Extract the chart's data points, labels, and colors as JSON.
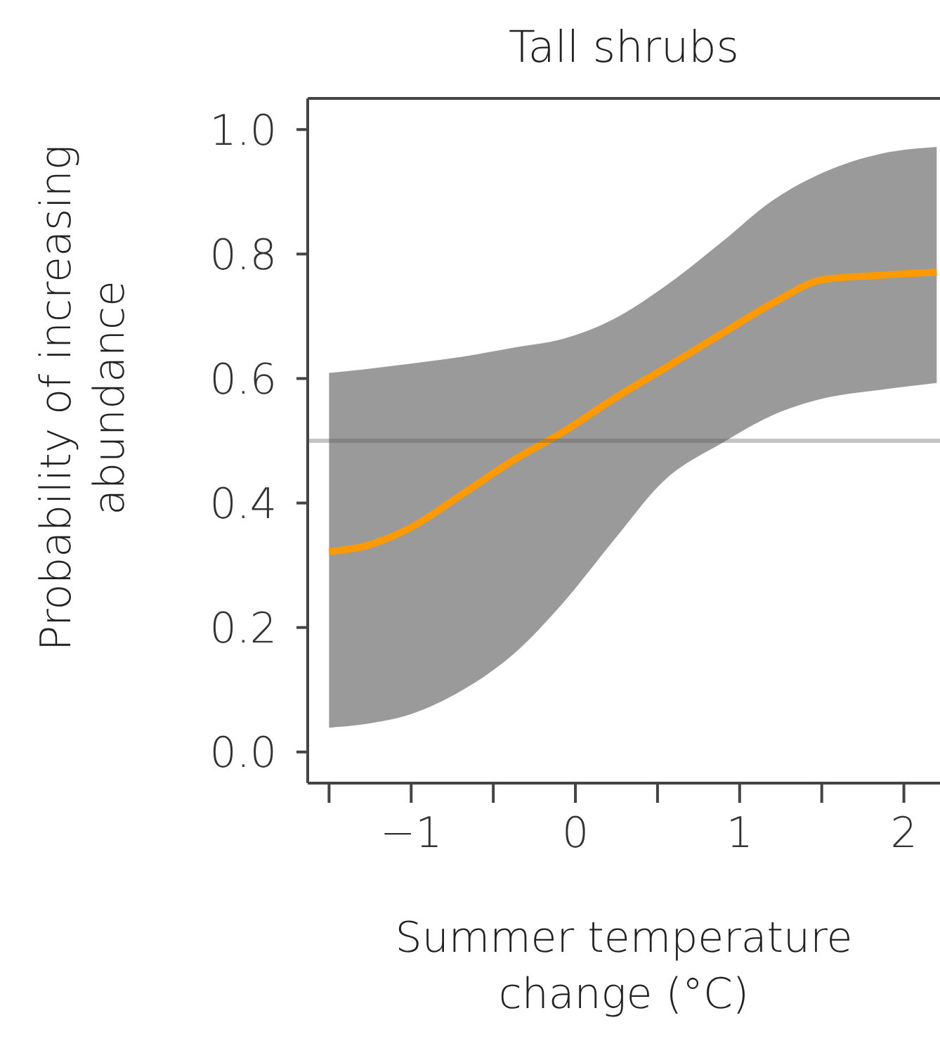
{
  "chart_data": {
    "type": "line",
    "title": "Tall shrubs",
    "xlabel": "Summer temperature change (°C)",
    "ylabel": "Probability of increasing abundance",
    "x": [
      -1.5,
      -1.28,
      -1.0,
      -0.69,
      -0.37,
      -0.07,
      0.23,
      0.54,
      0.89,
      1.2,
      1.51,
      1.86,
      2.2
    ],
    "series": [
      {
        "color": "#ff9900",
        "values": [
          0.322,
          0.331,
          0.361,
          0.414,
          0.47,
          0.515,
          0.567,
          0.616,
          0.672,
          0.721,
          0.759,
          0.766,
          0.771
        ],
        "lower": [
          0.039,
          0.045,
          0.061,
          0.099,
          0.159,
          0.241,
          0.339,
          0.436,
          0.496,
          0.541,
          0.568,
          0.582,
          0.593
        ],
        "upper": [
          0.609,
          0.615,
          0.624,
          0.635,
          0.65,
          0.664,
          0.695,
          0.747,
          0.819,
          0.886,
          0.931,
          0.961,
          0.972
        ]
      }
    ],
    "ref_lines": [
      {
        "axis": "y",
        "value": 0.5,
        "color": "#555555"
      }
    ],
    "xlim": [
      -1.63,
      2.22
    ],
    "xticks": [
      {
        "value": -1.5,
        "label": null
      },
      {
        "value": -1,
        "label": "−1"
      },
      {
        "value": -0.5,
        "label": null
      },
      0,
      {
        "value": 0.5,
        "label": null
      },
      1,
      {
        "value": 1.5,
        "label": null
      },
      2
    ],
    "ylim": [
      -0.05,
      1.05
    ],
    "yticks": [
      {
        "value": 0,
        "label": "0.0"
      },
      0.2,
      0.4,
      0.6,
      0.8,
      {
        "value": 1,
        "label": "1.0"
      }
    ],
    "grid": false,
    "legend": false,
    "marker": "none",
    "line_style": "solid"
  }
}
